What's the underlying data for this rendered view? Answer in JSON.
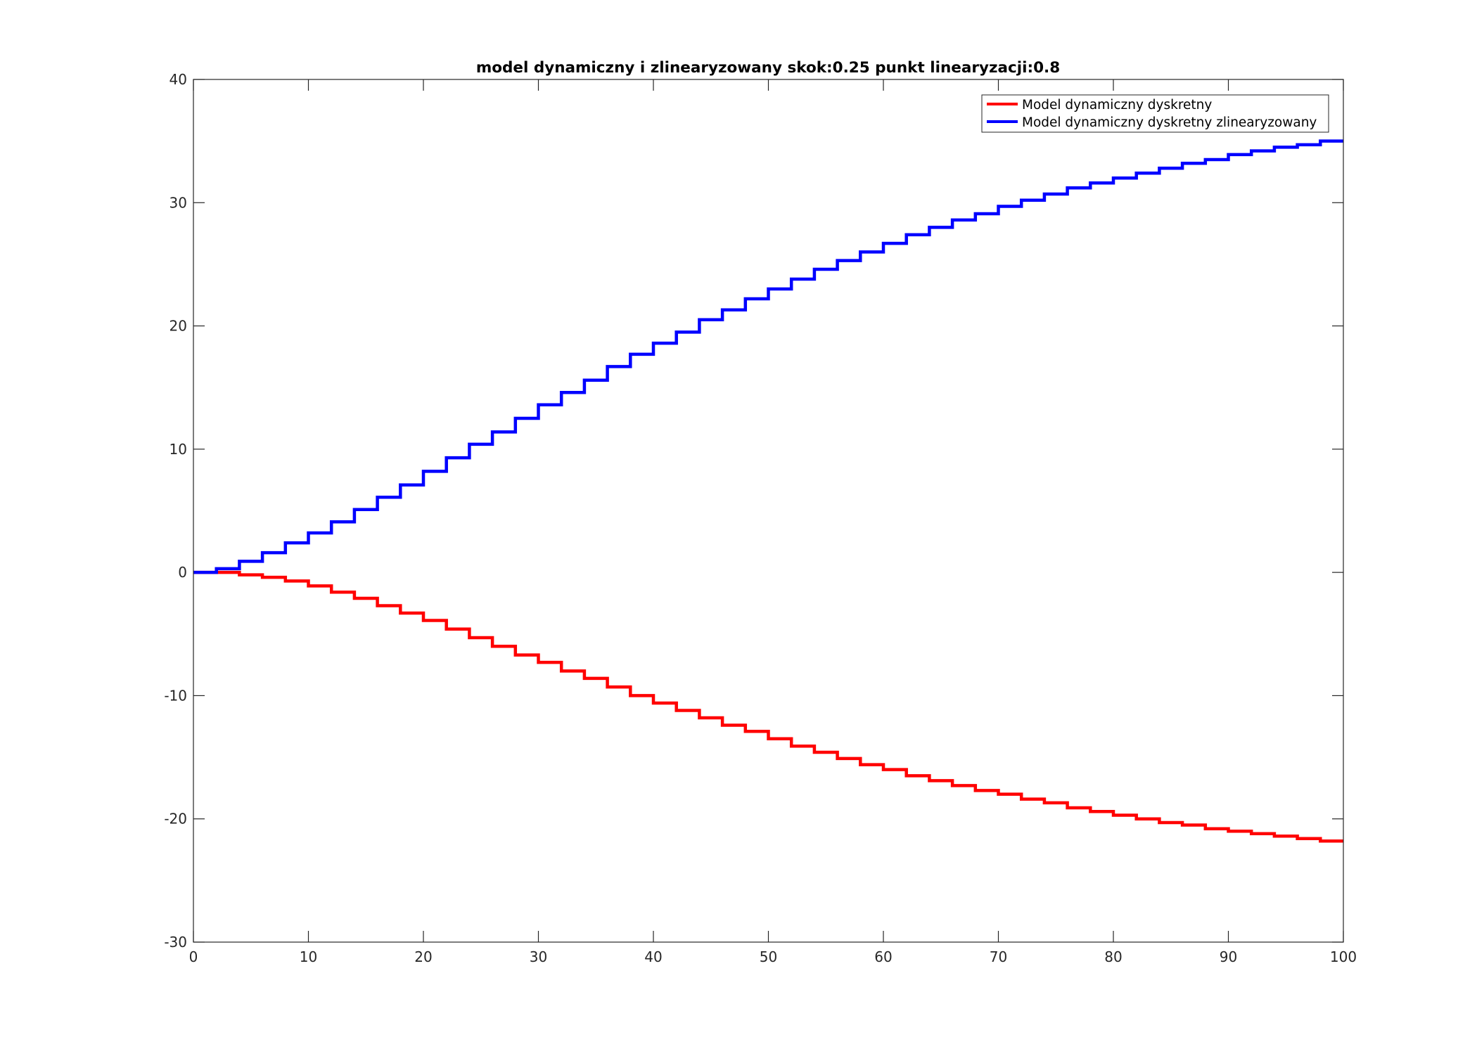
{
  "chart_data": {
    "type": "line",
    "step": true,
    "title": "model dynamiczny i zlinearyzowany skok:0.25 punkt linearyzacji:0.8",
    "xlabel": "",
    "ylabel": "",
    "xlim": [
      0,
      100
    ],
    "ylim": [
      -30,
      40
    ],
    "xticks": [
      0,
      10,
      20,
      30,
      40,
      50,
      60,
      70,
      80,
      90,
      100
    ],
    "yticks": [
      -30,
      -20,
      -10,
      0,
      10,
      20,
      30,
      40
    ],
    "xtick_labels": [
      "0",
      "10",
      "20",
      "30",
      "40",
      "50",
      "60",
      "70",
      "80",
      "90",
      "100"
    ],
    "ytick_labels": [
      "-30",
      "-20",
      "-10",
      "0",
      "10",
      "20",
      "30",
      "40"
    ],
    "grid": false,
    "legend_position": "top-right",
    "x": [
      0,
      2,
      4,
      6,
      8,
      10,
      12,
      14,
      16,
      18,
      20,
      22,
      24,
      26,
      28,
      30,
      32,
      34,
      36,
      38,
      40,
      42,
      44,
      46,
      48,
      50,
      52,
      54,
      56,
      58,
      60,
      62,
      64,
      66,
      68,
      70,
      72,
      74,
      76,
      78,
      80,
      82,
      84,
      86,
      88,
      90,
      92,
      94,
      96,
      98,
      100
    ],
    "series": [
      {
        "name": "Model dynamiczny dyskretny",
        "color": "#ff0000",
        "values": [
          0,
          0,
          -0.2,
          -0.4,
          -0.7,
          -1.1,
          -1.6,
          -2.1,
          -2.7,
          -3.3,
          -3.9,
          -4.6,
          -5.3,
          -6.0,
          -6.7,
          -7.3,
          -8.0,
          -8.6,
          -9.3,
          -10.0,
          -10.6,
          -11.2,
          -11.8,
          -12.4,
          -12.9,
          -13.5,
          -14.1,
          -14.6,
          -15.1,
          -15.6,
          -16.0,
          -16.5,
          -16.9,
          -17.3,
          -17.7,
          -18.0,
          -18.4,
          -18.7,
          -19.1,
          -19.4,
          -19.7,
          -20.0,
          -20.3,
          -20.5,
          -20.8,
          -21.0,
          -21.2,
          -21.4,
          -21.6,
          -21.8,
          -21.8
        ]
      },
      {
        "name": "Model dynamiczny dyskretny zlinearyzowany",
        "color": "#0000ff",
        "values": [
          0,
          0.3,
          0.9,
          1.6,
          2.4,
          3.2,
          4.1,
          5.1,
          6.1,
          7.1,
          8.2,
          9.3,
          10.4,
          11.4,
          12.5,
          13.6,
          14.6,
          15.6,
          16.7,
          17.7,
          18.6,
          19.5,
          20.5,
          21.3,
          22.2,
          23.0,
          23.8,
          24.6,
          25.3,
          26.0,
          26.7,
          27.4,
          28.0,
          28.6,
          29.1,
          29.7,
          30.2,
          30.7,
          31.2,
          31.6,
          32.0,
          32.4,
          32.8,
          33.2,
          33.5,
          33.9,
          34.2,
          34.5,
          34.7,
          35.0,
          35.0
        ]
      }
    ]
  }
}
